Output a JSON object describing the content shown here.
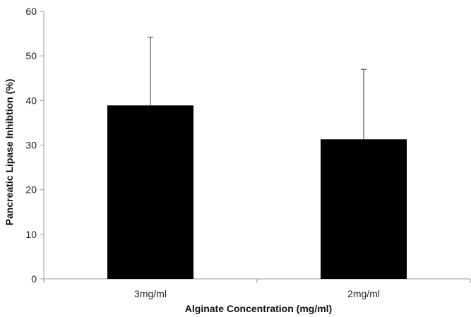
{
  "chart_data": {
    "type": "bar",
    "title": "",
    "xlabel": "Alginate Concentration  (mg/ml)",
    "ylabel": "Pancreatic Lipase Inhibtion (%)",
    "categories": [
      "3mg/ml",
      "2mg/ml"
    ],
    "values": [
      38.9,
      31.3
    ],
    "error_upper": [
      54.2,
      47.0
    ],
    "ylim": [
      0,
      60
    ],
    "yticks": [
      "0",
      "10",
      "20",
      "30",
      "40",
      "50",
      "60"
    ],
    "grid": false,
    "legend": "none",
    "colors": {
      "bar": "#000000",
      "axis": "#9a9a9a",
      "error_bar": "#333333"
    }
  }
}
